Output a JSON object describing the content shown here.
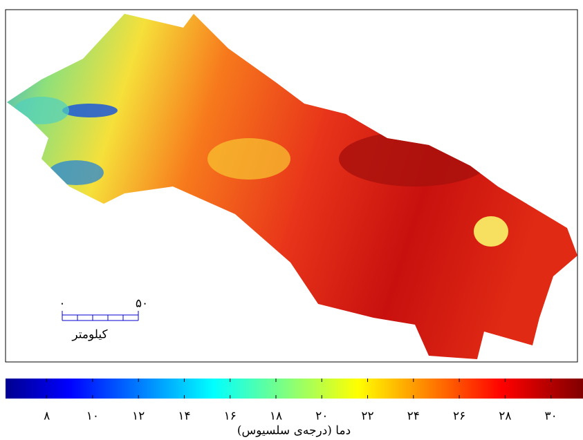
{
  "map": {
    "scale_bar": {
      "start": {
        "value": 0,
        "label": "۰"
      },
      "end": {
        "value": 50,
        "label": "۵۰"
      },
      "unit": "کیلومتر"
    }
  },
  "colorbar": {
    "lim": [
      6.2,
      31.4
    ],
    "ticks": [
      {
        "value": 8,
        "label": "۸"
      },
      {
        "value": 10,
        "label": "۱۰"
      },
      {
        "value": 12,
        "label": "۱۲"
      },
      {
        "value": 14,
        "label": "۱۴"
      },
      {
        "value": 16,
        "label": "۱۶"
      },
      {
        "value": 18,
        "label": "۱۸"
      },
      {
        "value": 20,
        "label": "۲۰"
      },
      {
        "value": 22,
        "label": "۲۲"
      },
      {
        "value": 24,
        "label": "۲۴"
      },
      {
        "value": 26,
        "label": "۲۶"
      },
      {
        "value": 28,
        "label": "۲۸"
      },
      {
        "value": 30,
        "label": "۳۰"
      }
    ],
    "label": "دما (درجه‌ی سلسیوس)"
  }
}
